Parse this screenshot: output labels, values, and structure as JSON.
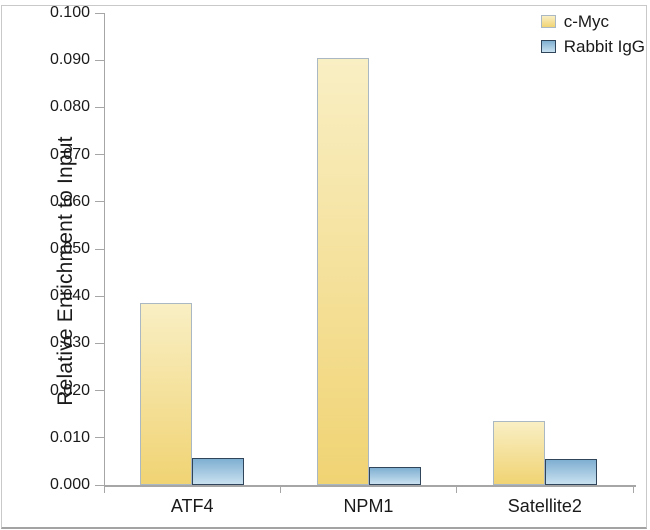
{
  "figure": {
    "background": "#ffffff",
    "border_color": "#c9c9c9",
    "text_color": "#1a1a1a"
  },
  "chart_data": {
    "type": "bar",
    "title": "",
    "xlabel": "",
    "ylabel": "Relative Enrichment to Input",
    "categories": [
      "ATF4",
      "NPM1",
      "Satellite2"
    ],
    "series": [
      {
        "name": "c-Myc",
        "values": [
          0.0385,
          0.0905,
          0.0135
        ],
        "fill_top": "#f9efc4",
        "fill_bottom": "#f0d373",
        "border": "#a9b8c2",
        "border_width": 1
      },
      {
        "name": "Rabbit IgG",
        "values": [
          0.0057,
          0.0038,
          0.0055
        ],
        "fill_top": "#7fafd1",
        "fill_bottom": "#c9e1f0",
        "border": "#31455a",
        "border_width": 1.5
      }
    ],
    "ylim": [
      0,
      0.1
    ],
    "ytick_step": 0.01,
    "ytick_labels": [
      "0.000",
      "0.010",
      "0.020",
      "0.030",
      "0.040",
      "0.050",
      "0.060",
      "0.070",
      "0.080",
      "0.090",
      "0.100"
    ],
    "grid": false,
    "legend_position": "top-right",
    "axis_color": "#a6a6a6"
  }
}
